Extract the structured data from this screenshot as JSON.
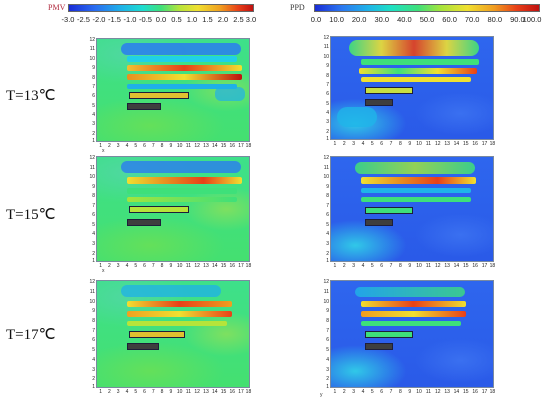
{
  "pmv_colorbar": {
    "title": "PMV",
    "ticks": [
      "-3.0",
      "-2.5",
      "-2.0",
      "-1.5",
      "-1.0",
      "-0.5",
      "0.0",
      "0.5",
      "1.0",
      "1.5",
      "2.0",
      "2.5",
      "3.0"
    ]
  },
  "ppd_colorbar": {
    "title": "PPD",
    "ticks": [
      "0.0",
      "10.0",
      "20.0",
      "30.0",
      "40.0",
      "50.0",
      "60.0",
      "70.0",
      "80.0",
      "90.0",
      "100.0"
    ]
  },
  "rows": [
    {
      "temperature_label": "T=13℃"
    },
    {
      "temperature_label": "T=15℃"
    },
    {
      "temperature_label": "T=17℃"
    }
  ],
  "axes": {
    "x_ticks": [
      "1",
      "2",
      "3",
      "4",
      "5",
      "6",
      "7",
      "8",
      "9",
      "10",
      "11",
      "12",
      "13",
      "14",
      "15",
      "16",
      "17",
      "18"
    ],
    "y_ticks": [
      "12",
      "11",
      "10",
      "9",
      "8",
      "7",
      "6",
      "5",
      "4",
      "3",
      "2",
      "1"
    ],
    "x_axis_mark": "x",
    "y_axis_mark": "y"
  },
  "colors": {
    "pmv_cold": "#1a2cd6",
    "pmv_neutral": "#3ee07a",
    "pmv_hot": "#c01010",
    "ppd_low": "#2a5ae8",
    "ppd_high": "#c01010"
  }
}
